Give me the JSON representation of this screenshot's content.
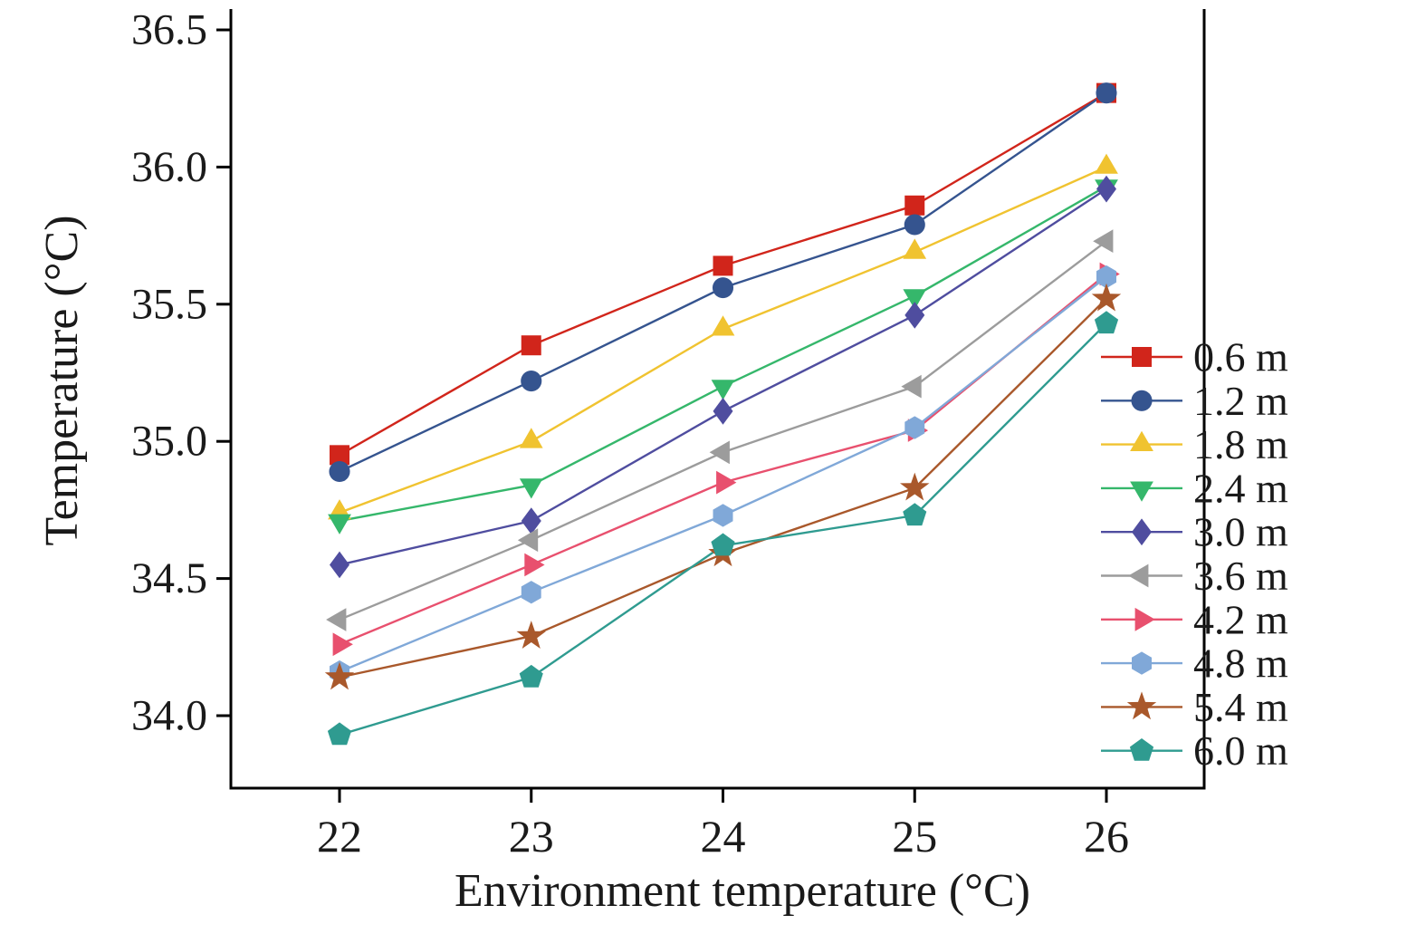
{
  "chart_data": {
    "type": "line",
    "title": "",
    "xlabel": "Environment temperature (°C)",
    "ylabel": "Temperature (°C)",
    "x": [
      22,
      23,
      24,
      25,
      26
    ],
    "xtick_labels": [
      "22",
      "23",
      "24",
      "25",
      "26"
    ],
    "yticks": [
      34.0,
      34.5,
      35.0,
      35.5,
      36.0,
      36.5
    ],
    "ytick_labels": [
      "34.0",
      "34.5",
      "35.0",
      "35.5",
      "36.0",
      "36.5"
    ],
    "ylim": [
      33.74,
      36.57
    ],
    "xlim": [
      21.45,
      26.5
    ],
    "grid": false,
    "legend_position": "right-inside",
    "series": [
      {
        "name": "0.6 m",
        "marker": "square",
        "color": "#d1251b",
        "values": [
          34.95,
          35.35,
          35.64,
          35.86,
          36.27
        ]
      },
      {
        "name": "1.2 m",
        "marker": "circle",
        "color": "#35548f",
        "values": [
          34.89,
          35.22,
          35.56,
          35.79,
          36.27
        ]
      },
      {
        "name": "1.8 m",
        "marker": "triangle-up",
        "color": "#f0c330",
        "values": [
          34.74,
          35.0,
          35.41,
          35.69,
          36.0
        ]
      },
      {
        "name": "2.4 m",
        "marker": "triangle-down",
        "color": "#35b76b",
        "values": [
          34.71,
          34.84,
          35.2,
          35.53,
          35.93
        ]
      },
      {
        "name": "3.0 m",
        "marker": "diamond",
        "color": "#4f4d9f",
        "values": [
          34.55,
          34.71,
          35.11,
          35.46,
          35.92
        ]
      },
      {
        "name": "3.6 m",
        "marker": "triangle-left",
        "color": "#9c9c9c",
        "values": [
          34.35,
          34.64,
          34.96,
          35.2,
          35.73
        ]
      },
      {
        "name": "4.2 m",
        "marker": "triangle-right",
        "color": "#e8506e",
        "values": [
          34.26,
          34.55,
          34.85,
          35.04,
          35.61
        ]
      },
      {
        "name": "4.8 m",
        "marker": "hexagon",
        "color": "#80a8d8",
        "values": [
          34.16,
          34.45,
          34.73,
          35.05,
          35.6
        ]
      },
      {
        "name": "5.4 m",
        "marker": "star",
        "color": "#a9582b",
        "values": [
          34.14,
          34.29,
          34.59,
          34.83,
          35.52
        ]
      },
      {
        "name": "6.0 m",
        "marker": "pentagon",
        "color": "#2f9b90",
        "values": [
          33.93,
          34.14,
          34.62,
          34.73,
          35.43
        ]
      }
    ]
  },
  "colors": {
    "axis": "#000000",
    "text": "#1a1a1a",
    "background": "#ffffff"
  }
}
